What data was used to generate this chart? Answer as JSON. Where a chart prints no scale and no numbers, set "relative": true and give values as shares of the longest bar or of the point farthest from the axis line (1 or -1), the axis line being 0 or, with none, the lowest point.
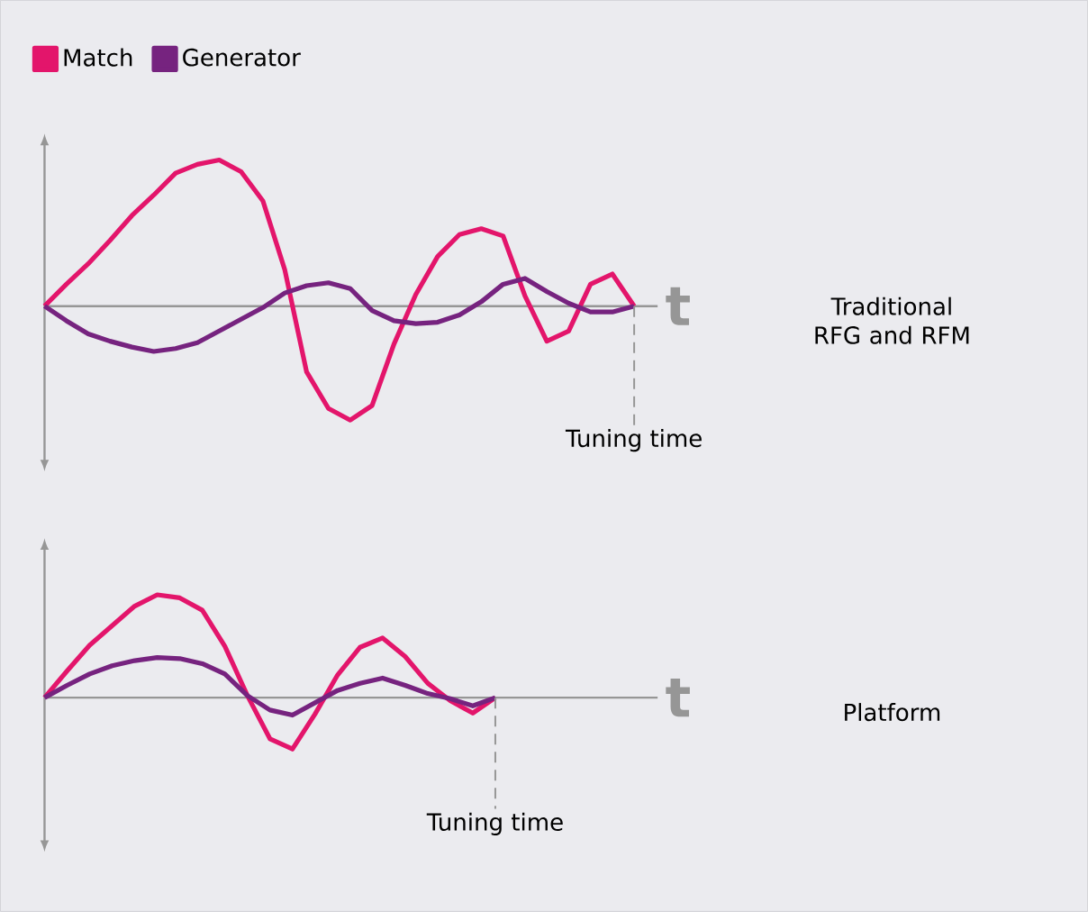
{
  "chart_data": [
    {
      "type": "line",
      "relative": true,
      "xlabel": "t",
      "legend": "top left",
      "annotations": [
        "Traditional RFG and RFM",
        "Tuning time"
      ],
      "categories": [
        null,
        null,
        null,
        null,
        null,
        null,
        null,
        null,
        null,
        null,
        null,
        null,
        null,
        null,
        null,
        null,
        null,
        null,
        null,
        null,
        null,
        null,
        null,
        null,
        null,
        null,
        null,
        null
      ],
      "series": [
        {
          "name": "Match",
          "color": "#e3156b",
          "values": [
            0,
            0.15,
            0.29,
            0.45,
            0.62,
            0.76,
            0.91,
            0.97,
            1,
            0.92,
            0.72,
            0.25,
            -0.45,
            -0.7,
            -0.78,
            -0.68,
            -0.26,
            0.08,
            0.34,
            0.49,
            0.53,
            0.48,
            0.07,
            -0.24,
            -0.17,
            0.15,
            0.22,
            0
          ]
        },
        {
          "name": "Generator",
          "color": "#76237f",
          "values": [
            0,
            -0.1,
            -0.19,
            -0.24,
            -0.28,
            -0.31,
            -0.29,
            -0.25,
            -0.17,
            -0.09,
            -0.01,
            0.09,
            0.14,
            0.16,
            0.12,
            -0.03,
            -0.1,
            -0.12,
            -0.11,
            -0.06,
            0.03,
            0.15,
            0.19,
            0.1,
            0.02,
            -0.04,
            -0.04,
            0
          ]
        }
      ]
    },
    {
      "type": "line",
      "relative": true,
      "xlabel": "t",
      "annotations": [
        "Platform",
        "Tuning time"
      ],
      "categories": [
        null,
        null,
        null,
        null,
        null,
        null,
        null,
        null,
        null,
        null,
        null,
        null,
        null,
        null,
        null,
        null,
        null,
        null,
        null,
        null,
        null
      ],
      "series": [
        {
          "color": "#e3156b",
          "values": [
            0,
            0.26,
            0.51,
            0.7,
            0.89,
            1,
            0.97,
            0.85,
            0.5,
            0.02,
            -0.4,
            -0.5,
            -0.16,
            0.22,
            0.49,
            0.58,
            0.4,
            0.14,
            -0.03,
            -0.15,
            0
          ]
        },
        {
          "color": "#76237f",
          "values": [
            0,
            0.12,
            0.23,
            0.31,
            0.36,
            0.39,
            0.38,
            0.33,
            0.23,
            0.02,
            -0.12,
            -0.17,
            -0.05,
            0.07,
            0.14,
            0.19,
            0.12,
            0.04,
            -0.01,
            -0.08,
            0
          ]
        }
      ]
    }
  ]
}
